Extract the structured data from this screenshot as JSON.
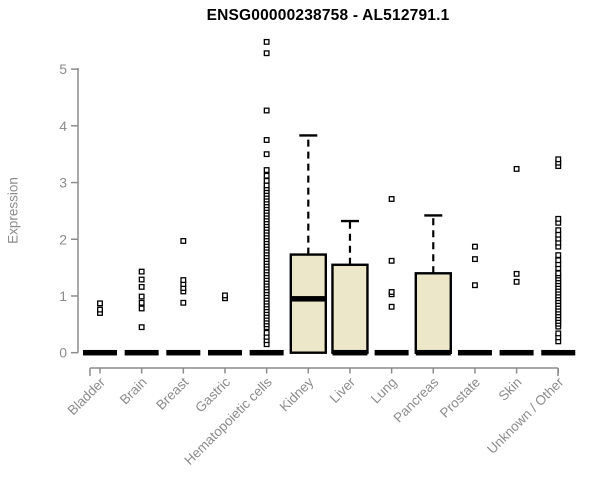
{
  "chart_data": {
    "type": "boxplot",
    "title": "ENSG00000238758 - AL512791.1",
    "ylabel": "Expression",
    "xlabel": "",
    "ylim": [
      0,
      5.6
    ],
    "yticks": [
      0,
      1,
      2,
      3,
      4,
      5
    ],
    "grid": false,
    "legend": false,
    "categories": [
      "Bladder",
      "Brain",
      "Breast",
      "Gastric",
      "Hematopoietic cells",
      "Kidney",
      "Liver",
      "Lung",
      "Pancreas",
      "Prostate",
      "Skin",
      "Unknown / Other"
    ],
    "boxes": [
      {
        "category": "Bladder",
        "q1": 0,
        "median": 0,
        "q3": 0,
        "whisker_low": 0,
        "whisker_high": 0,
        "outliers": [
          0.7,
          0.76,
          0.87
        ]
      },
      {
        "category": "Brain",
        "q1": 0,
        "median": 0,
        "q3": 0,
        "whisker_low": 0,
        "whisker_high": 0,
        "outliers": [
          0.45,
          0.78,
          0.88,
          0.99,
          1.16,
          1.29,
          1.43
        ]
      },
      {
        "category": "Breast",
        "q1": 0,
        "median": 0,
        "q3": 0,
        "whisker_low": 0,
        "whisker_high": 0,
        "outliers": [
          0.88,
          1.08,
          1.14,
          1.21,
          1.28,
          1.97
        ]
      },
      {
        "category": "Gastric",
        "q1": 0,
        "median": 0,
        "q3": 0,
        "whisker_low": 0,
        "whisker_high": 0,
        "outliers": [
          0.96,
          1.01
        ]
      },
      {
        "category": "Hematopoietic cells",
        "q1": 0,
        "median": 0,
        "q3": 0,
        "whisker_low": 0,
        "whisker_high": 0,
        "outliers": [
          0.15,
          0.22,
          0.28,
          0.35,
          0.45,
          0.5,
          0.55,
          0.6,
          0.65,
          0.7,
          0.75,
          0.8,
          0.85,
          0.9,
          0.95,
          1.0,
          1.05,
          1.1,
          1.15,
          1.2,
          1.25,
          1.3,
          1.35,
          1.4,
          1.45,
          1.5,
          1.55,
          1.6,
          1.65,
          1.7,
          1.75,
          1.8,
          1.85,
          1.9,
          1.95,
          2.0,
          2.05,
          2.1,
          2.15,
          2.2,
          2.25,
          2.3,
          2.35,
          2.4,
          2.45,
          2.5,
          2.55,
          2.6,
          2.65,
          2.7,
          2.75,
          2.8,
          2.85,
          2.9,
          2.95,
          3.03,
          3.12,
          3.22,
          3.5,
          3.75,
          4.27,
          5.28,
          5.48
        ]
      },
      {
        "category": "Kidney",
        "q1": 0,
        "median": 0.95,
        "q3": 1.73,
        "whisker_low": 0,
        "whisker_high": 3.83,
        "outliers": []
      },
      {
        "category": "Liver",
        "q1": 0,
        "median": 0,
        "q3": 1.55,
        "whisker_low": 0,
        "whisker_high": 2.32,
        "outliers": []
      },
      {
        "category": "Lung",
        "q1": 0,
        "median": 0,
        "q3": 0,
        "whisker_low": 0,
        "whisker_high": 0,
        "outliers": [
          0.81,
          1.03,
          1.07,
          1.62,
          2.71
        ]
      },
      {
        "category": "Pancreas",
        "q1": 0,
        "median": 0,
        "q3": 1.4,
        "whisker_low": 0,
        "whisker_high": 2.42,
        "outliers": []
      },
      {
        "category": "Prostate",
        "q1": 0,
        "median": 0,
        "q3": 0,
        "whisker_low": 0,
        "whisker_high": 0,
        "outliers": [
          1.19,
          1.65,
          1.87
        ]
      },
      {
        "category": "Skin",
        "q1": 0,
        "median": 0,
        "q3": 0,
        "whisker_low": 0,
        "whisker_high": 0,
        "outliers": [
          1.25,
          1.39,
          3.24
        ]
      },
      {
        "category": "Unknown / Other",
        "q1": 0,
        "median": 0,
        "q3": 0,
        "whisker_low": 0,
        "whisker_high": 0,
        "outliers": [
          0.2,
          0.27,
          0.34,
          0.46,
          0.51,
          0.56,
          0.61,
          0.66,
          0.71,
          0.76,
          0.81,
          0.86,
          0.91,
          0.96,
          1.01,
          1.06,
          1.11,
          1.16,
          1.21,
          1.26,
          1.31,
          1.36,
          1.4,
          1.49,
          1.56,
          1.63,
          1.72,
          1.87,
          1.94,
          2.01,
          2.08,
          2.16,
          2.29,
          2.36,
          3.29,
          3.35,
          3.41
        ]
      }
    ],
    "colors": {
      "box_fill": "#EDE7C9",
      "box_stroke": "#000000",
      "median": "#000000",
      "outlier_stroke": "#000000",
      "outlier_fill": "#ffffff",
      "axis": "#8c8c8c",
      "tick_text": "#8c8c8c",
      "title_text": "#000000",
      "background": "#ffffff"
    }
  }
}
